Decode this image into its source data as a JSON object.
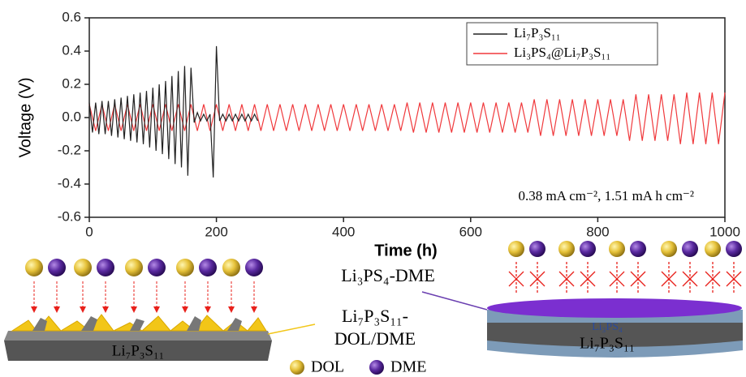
{
  "chart_data": {
    "type": "line",
    "x_label": "Time (h)",
    "y_label": "Voltage (V)",
    "annotation": "0.38 mA cm⁻², 1.51 mA h cm⁻²",
    "xlim": [
      0,
      1000
    ],
    "xticks": [
      0,
      200,
      400,
      600,
      800,
      1000
    ],
    "ylim": [
      -0.6,
      0.6
    ],
    "yticks": [
      -0.6,
      -0.4,
      -0.2,
      {
        "value": 0,
        "label": "0.0"
      },
      0.2,
      0.4,
      0.6
    ],
    "legend": "upper right",
    "series": [
      {
        "name": "Li₇P₃S₁₁",
        "color": "#222222",
        "x": [
          0,
          5,
          10,
          15,
          20,
          25,
          30,
          35,
          40,
          45,
          50,
          55,
          60,
          65,
          70,
          75,
          80,
          85,
          90,
          95,
          100,
          105,
          110,
          115,
          120,
          125,
          130,
          135,
          140,
          145,
          150,
          155,
          160,
          165,
          170,
          175,
          180,
          185,
          190,
          195,
          200,
          205,
          210,
          215,
          220,
          225,
          230,
          235,
          240,
          245,
          250,
          255,
          260,
          265
        ],
        "values": [
          0.09,
          -0.09,
          0.09,
          -0.1,
          0.1,
          -0.1,
          0.1,
          -0.11,
          0.11,
          -0.12,
          0.12,
          -0.13,
          0.13,
          -0.14,
          0.14,
          -0.15,
          0.15,
          -0.16,
          0.16,
          -0.18,
          0.18,
          -0.2,
          0.2,
          -0.22,
          0.22,
          -0.25,
          0.25,
          -0.28,
          0.28,
          -0.3,
          0.31,
          -0.35,
          0.3,
          -0.03,
          0.03,
          -0.02,
          0.02,
          -0.02,
          0.02,
          -0.36,
          0.43,
          -0.02,
          0.02,
          -0.02,
          0.02,
          -0.02,
          0.02,
          -0.02,
          0.02,
          -0.02,
          0.02,
          -0.02,
          0.02,
          -0.02
        ]
      },
      {
        "name": "Li₃PS₄@Li₇P₃S₁₁",
        "color": "#f0393c",
        "x": [
          0,
          10,
          20,
          30,
          40,
          50,
          60,
          70,
          80,
          90,
          100,
          110,
          120,
          130,
          140,
          150,
          160,
          170,
          180,
          190,
          200,
          210,
          220,
          230,
          240,
          250,
          260,
          270,
          280,
          290,
          300,
          310,
          320,
          330,
          340,
          350,
          360,
          370,
          380,
          390,
          400,
          410,
          420,
          430,
          440,
          450,
          460,
          470,
          480,
          490,
          500,
          510,
          520,
          530,
          540,
          550,
          560,
          570,
          580,
          590,
          600,
          610,
          620,
          630,
          640,
          650,
          660,
          670,
          680,
          690,
          700,
          710,
          720,
          730,
          740,
          750,
          760,
          770,
          780,
          790,
          800,
          810,
          820,
          830,
          840,
          850,
          860,
          870,
          880,
          890,
          900,
          910,
          920,
          930,
          940,
          950,
          960,
          970,
          980,
          990,
          1000
        ],
        "values": [
          0.08,
          -0.08,
          0.08,
          -0.08,
          0.08,
          -0.08,
          0.08,
          -0.08,
          0.08,
          -0.08,
          0.08,
          -0.08,
          0.08,
          -0.08,
          0.08,
          -0.08,
          0.08,
          -0.08,
          0.08,
          -0.08,
          0.08,
          -0.08,
          0.08,
          -0.08,
          0.08,
          -0.08,
          0.08,
          -0.08,
          0.08,
          -0.08,
          0.08,
          -0.08,
          0.08,
          -0.08,
          0.08,
          -0.08,
          0.08,
          -0.08,
          0.08,
          -0.08,
          0.08,
          -0.08,
          0.08,
          -0.08,
          0.08,
          -0.08,
          0.08,
          -0.08,
          0.08,
          -0.08,
          0.09,
          -0.09,
          0.09,
          -0.09,
          0.09,
          -0.09,
          0.09,
          -0.09,
          0.09,
          -0.09,
          0.09,
          -0.09,
          0.09,
          -0.09,
          0.09,
          -0.09,
          0.09,
          -0.09,
          0.09,
          -0.09,
          0.11,
          -0.11,
          0.11,
          -0.11,
          0.11,
          -0.11,
          0.11,
          -0.11,
          0.11,
          -0.11,
          0.11,
          -0.11,
          0.11,
          -0.11,
          0.11,
          -0.14,
          0.14,
          -0.14,
          0.14,
          -0.14,
          0.14,
          -0.14,
          0.14,
          -0.16,
          0.15,
          -0.16,
          0.15,
          -0.16,
          0.15,
          -0.16,
          0.15
        ]
      }
    ]
  },
  "illustration": {
    "left_substrate": "Li₇P₃S₁₁",
    "left_label_line1": "Li₇P₃S₁₁-",
    "left_label_line2": "DOL/DME",
    "right_label": "Li₃PS₄-DME",
    "right_layer": "Li₃PS₄",
    "right_substrate": "Li₇P₃S₁₁",
    "legend_dol": "DOL",
    "legend_dme": "DME"
  }
}
